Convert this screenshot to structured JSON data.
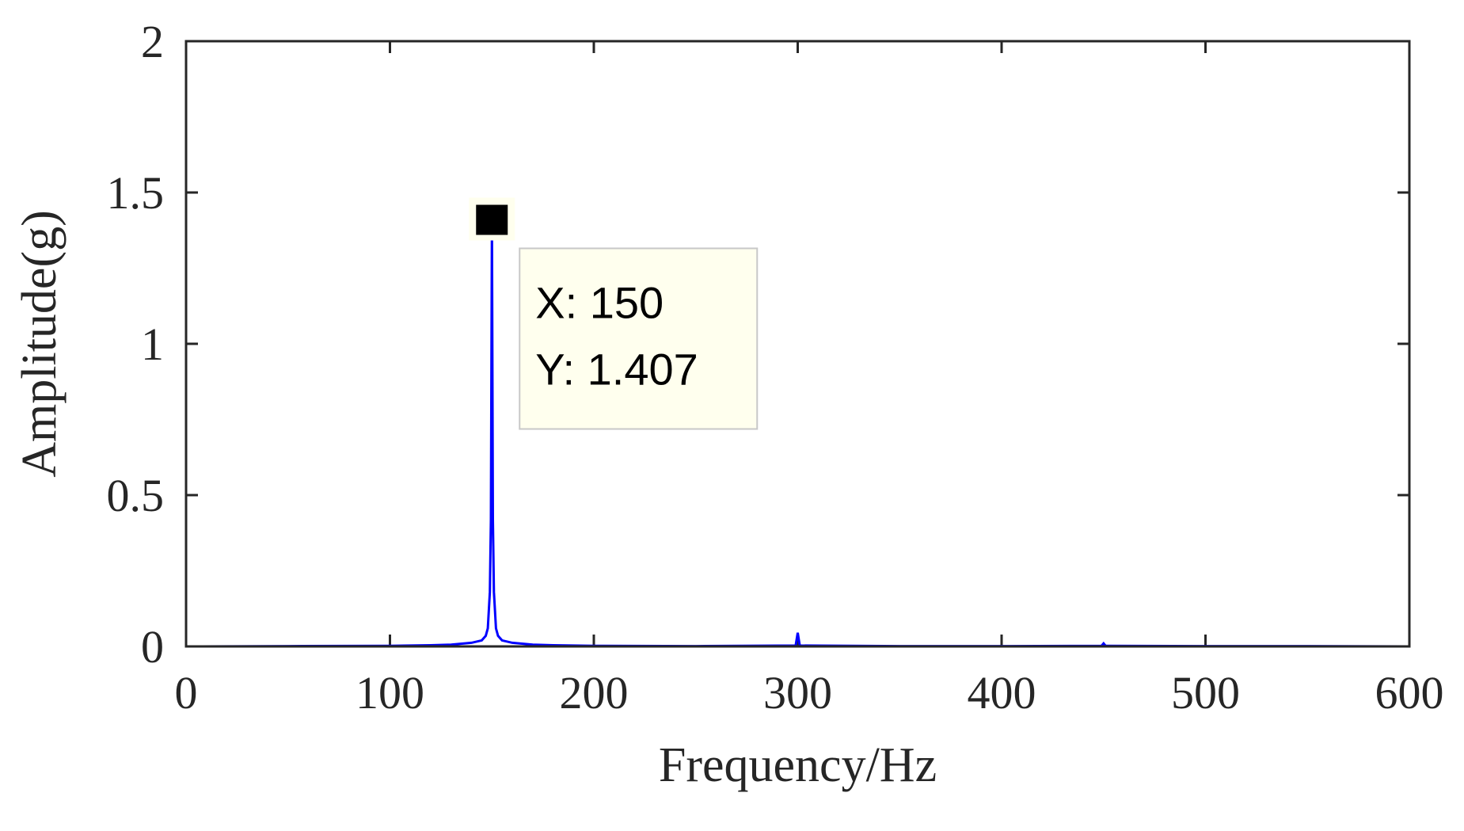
{
  "chart_data": {
    "type": "line",
    "title": "",
    "xlabel": "Frequency/Hz",
    "ylabel": "Amplitude(g)",
    "xlim": [
      0,
      600
    ],
    "ylim": [
      0,
      2
    ],
    "xticks": [
      0,
      100,
      200,
      300,
      400,
      500,
      600
    ],
    "yticks": [
      0,
      0.5,
      1,
      1.5,
      2
    ],
    "xtick_labels": [
      "0",
      "100",
      "200",
      "300",
      "400",
      "500",
      "600"
    ],
    "ytick_labels": [
      "0",
      "0.5",
      "1",
      "1.5",
      "2"
    ],
    "grid": false,
    "legend": "none",
    "series": [
      {
        "color": "#0000ff",
        "x": [
          0,
          50,
          100,
          120,
          130,
          140,
          145,
          147,
          148,
          149,
          149.5,
          150,
          150.5,
          151,
          152,
          153,
          155,
          160,
          170,
          180,
          190,
          200,
          250,
          299,
          300,
          301,
          350,
          400,
          449,
          450,
          451,
          500,
          550,
          600
        ],
        "y": [
          0.0,
          0.001,
          0.002,
          0.004,
          0.006,
          0.012,
          0.02,
          0.035,
          0.06,
          0.18,
          0.42,
          1.407,
          0.42,
          0.18,
          0.06,
          0.035,
          0.02,
          0.012,
          0.006,
          0.004,
          0.003,
          0.002,
          0.001,
          0.003,
          0.045,
          0.003,
          0.001,
          0.001,
          0.002,
          0.01,
          0.002,
          0.001,
          0.001,
          0.0
        ]
      }
    ],
    "datatip": {
      "x": 150,
      "y": 1.407,
      "x_text": "X: 150",
      "y_text": "Y: 1.407",
      "background": "#ffffee",
      "border": "#c8c8c8"
    },
    "colors": {
      "axis": "#262626",
      "line": "#0000ff",
      "marker": "#000000"
    }
  }
}
